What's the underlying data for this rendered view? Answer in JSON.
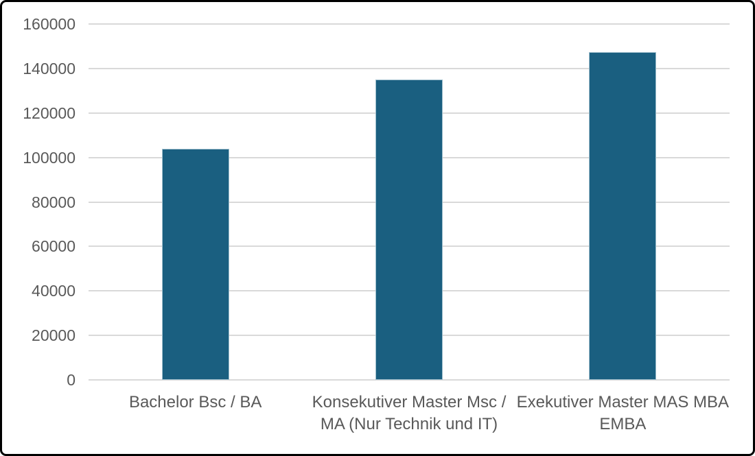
{
  "chart_data": {
    "type": "bar",
    "categories": [
      "Bachelor Bsc / BA",
      "Konsekutiver Master Msc / MA (Nur Technik und IT)",
      "Exekutiver Master MAS MBA EMBA"
    ],
    "category_label_lines": [
      [
        "Bachelor Bsc / BA"
      ],
      [
        "Konsekutiver Master Msc /",
        "MA (Nur Technik und IT)"
      ],
      [
        "Exekutiver Master MAS MBA",
        "EMBA"
      ]
    ],
    "values": [
      104000,
      135000,
      147500
    ],
    "ylim": [
      0,
      160000
    ],
    "ytick_step": 20000,
    "ytick_labels": [
      "0",
      "20000",
      "40000",
      "60000",
      "80000",
      "100000",
      "120000",
      "140000",
      "160000"
    ],
    "grid": true,
    "legend": false,
    "title": "",
    "xlabel": "",
    "ylabel": "",
    "colors": {
      "bar_fill": "#1A5F80",
      "bar_edge": "#9FBFCD",
      "gridline": "#D9D9D9",
      "axis_line": "#D9D9D9",
      "text": "#595959",
      "frame_border": "#000000",
      "background": "#FFFFFF"
    }
  }
}
